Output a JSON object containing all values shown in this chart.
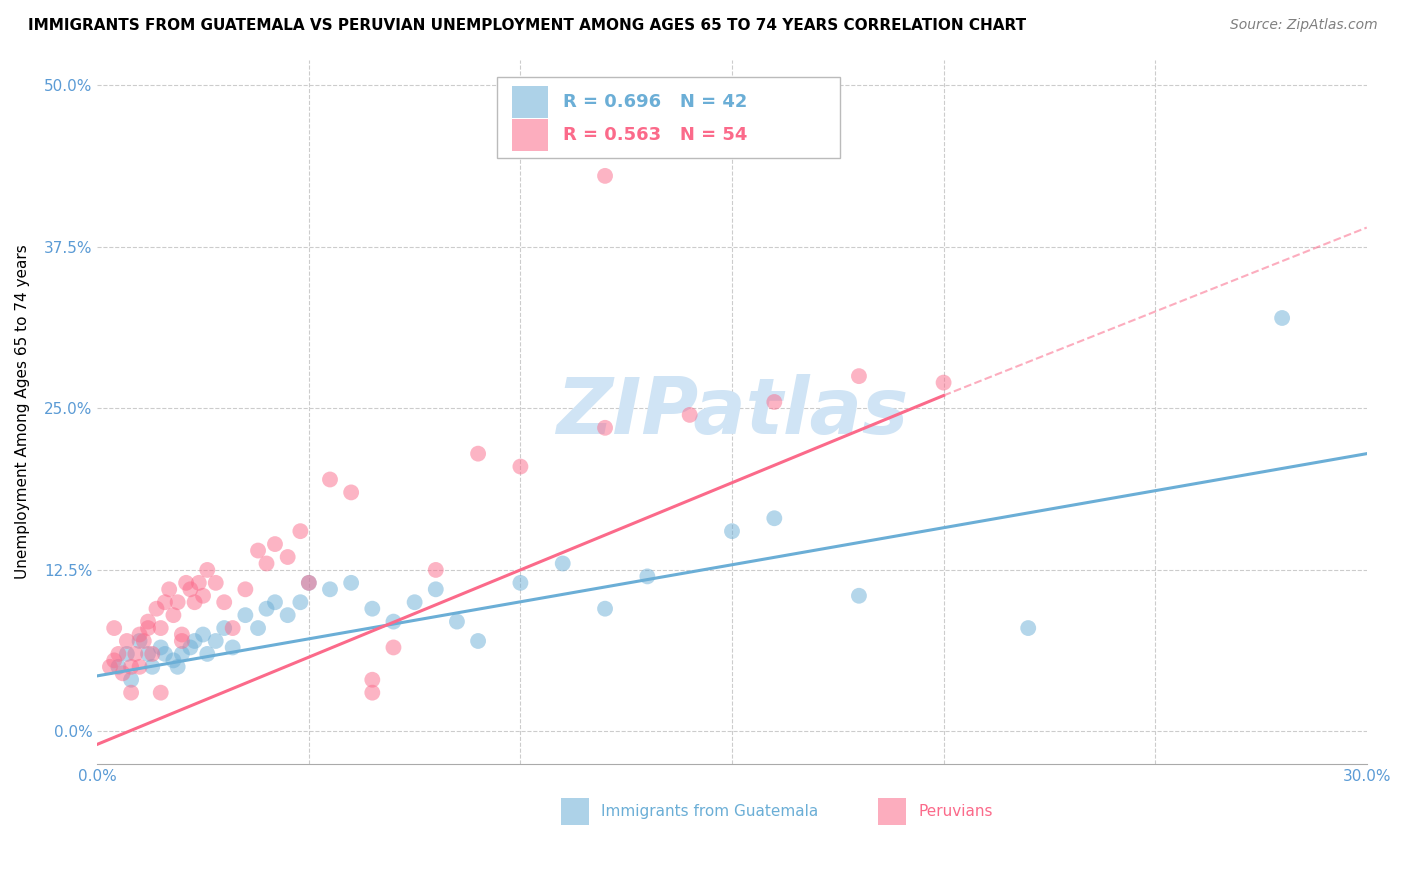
{
  "title": "IMMIGRANTS FROM GUATEMALA VS PERUVIAN UNEMPLOYMENT AMONG AGES 65 TO 74 YEARS CORRELATION CHART",
  "source": "Source: ZipAtlas.com",
  "ylabel_label": "Unemployment Among Ages 65 to 74 years",
  "ylabel_ticks": [
    "0.0%",
    "12.5%",
    "25.0%",
    "37.5%",
    "50.0%"
  ],
  "xlim": [
    0.0,
    0.3
  ],
  "ylim": [
    -0.025,
    0.52
  ],
  "legend_entries": [
    {
      "label": "R = 0.696   N = 42",
      "color": "#6baed6"
    },
    {
      "label": "R = 0.563   N = 54",
      "color": "#fb6a8a"
    }
  ],
  "guatemala_color": "#6baed6",
  "peruvian_color": "#fb6a8a",
  "watermark": "ZIPatlas",
  "watermark_color": "#d0e4f5",
  "background_color": "#ffffff",
  "grid_color": "#cccccc",
  "axis_label_color": "#5b9bd5",
  "guatemala_points": [
    [
      0.005,
      0.05
    ],
    [
      0.007,
      0.06
    ],
    [
      0.008,
      0.04
    ],
    [
      0.01,
      0.07
    ],
    [
      0.012,
      0.06
    ],
    [
      0.013,
      0.05
    ],
    [
      0.015,
      0.065
    ],
    [
      0.016,
      0.06
    ],
    [
      0.018,
      0.055
    ],
    [
      0.019,
      0.05
    ],
    [
      0.02,
      0.06
    ],
    [
      0.022,
      0.065
    ],
    [
      0.023,
      0.07
    ],
    [
      0.025,
      0.075
    ],
    [
      0.026,
      0.06
    ],
    [
      0.028,
      0.07
    ],
    [
      0.03,
      0.08
    ],
    [
      0.032,
      0.065
    ],
    [
      0.035,
      0.09
    ],
    [
      0.038,
      0.08
    ],
    [
      0.04,
      0.095
    ],
    [
      0.042,
      0.1
    ],
    [
      0.045,
      0.09
    ],
    [
      0.048,
      0.1
    ],
    [
      0.05,
      0.115
    ],
    [
      0.055,
      0.11
    ],
    [
      0.06,
      0.115
    ],
    [
      0.065,
      0.095
    ],
    [
      0.07,
      0.085
    ],
    [
      0.075,
      0.1
    ],
    [
      0.08,
      0.11
    ],
    [
      0.085,
      0.085
    ],
    [
      0.09,
      0.07
    ],
    [
      0.1,
      0.115
    ],
    [
      0.11,
      0.13
    ],
    [
      0.12,
      0.095
    ],
    [
      0.13,
      0.12
    ],
    [
      0.15,
      0.155
    ],
    [
      0.16,
      0.165
    ],
    [
      0.18,
      0.105
    ],
    [
      0.22,
      0.08
    ],
    [
      0.28,
      0.32
    ]
  ],
  "peruvian_points": [
    [
      0.003,
      0.05
    ],
    [
      0.004,
      0.055
    ],
    [
      0.005,
      0.06
    ],
    [
      0.006,
      0.045
    ],
    [
      0.007,
      0.07
    ],
    [
      0.008,
      0.05
    ],
    [
      0.008,
      0.03
    ],
    [
      0.009,
      0.06
    ],
    [
      0.01,
      0.075
    ],
    [
      0.01,
      0.05
    ],
    [
      0.011,
      0.07
    ],
    [
      0.012,
      0.085
    ],
    [
      0.012,
      0.08
    ],
    [
      0.013,
      0.06
    ],
    [
      0.014,
      0.095
    ],
    [
      0.015,
      0.08
    ],
    [
      0.015,
      0.03
    ],
    [
      0.016,
      0.1
    ],
    [
      0.017,
      0.11
    ],
    [
      0.018,
      0.09
    ],
    [
      0.019,
      0.1
    ],
    [
      0.02,
      0.075
    ],
    [
      0.02,
      0.07
    ],
    [
      0.021,
      0.115
    ],
    [
      0.022,
      0.11
    ],
    [
      0.023,
      0.1
    ],
    [
      0.024,
      0.115
    ],
    [
      0.025,
      0.105
    ],
    [
      0.026,
      0.125
    ],
    [
      0.028,
      0.115
    ],
    [
      0.03,
      0.1
    ],
    [
      0.032,
      0.08
    ],
    [
      0.035,
      0.11
    ],
    [
      0.038,
      0.14
    ],
    [
      0.04,
      0.13
    ],
    [
      0.042,
      0.145
    ],
    [
      0.045,
      0.135
    ],
    [
      0.048,
      0.155
    ],
    [
      0.05,
      0.115
    ],
    [
      0.055,
      0.195
    ],
    [
      0.06,
      0.185
    ],
    [
      0.065,
      0.04
    ],
    [
      0.065,
      0.03
    ],
    [
      0.07,
      0.065
    ],
    [
      0.08,
      0.125
    ],
    [
      0.09,
      0.215
    ],
    [
      0.1,
      0.205
    ],
    [
      0.12,
      0.235
    ],
    [
      0.12,
      0.43
    ],
    [
      0.14,
      0.245
    ],
    [
      0.16,
      0.255
    ],
    [
      0.18,
      0.275
    ],
    [
      0.2,
      0.27
    ],
    [
      0.004,
      0.08
    ]
  ],
  "guatemala_line": {
    "x0": 0.0,
    "y0": 0.043,
    "x1": 0.3,
    "y1": 0.215
  },
  "peruvian_line_solid": {
    "x0": 0.0,
    "y0": -0.01,
    "x1": 0.2,
    "y1": 0.26
  },
  "peruvian_line_dashed": {
    "x0": 0.2,
    "y0": 0.26,
    "x1": 0.3,
    "y1": 0.39
  },
  "title_fontsize": 11,
  "axis_tick_fontsize": 11,
  "ylabel_fontsize": 11,
  "legend_fontsize": 13,
  "source_fontsize": 10
}
